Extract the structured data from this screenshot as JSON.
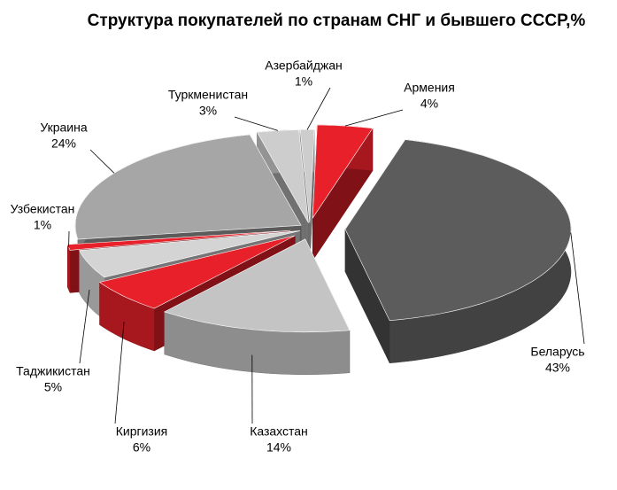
{
  "chart_data": {
    "type": "pie",
    "title": "Структура  покупателей по странам СНГ и бывшего СССР,%",
    "categories": [
      "Армения",
      "Беларусь",
      "Казахстан",
      "Киргизия",
      "Таджикистан",
      "Узбекистан",
      "Украина",
      "Туркменистан",
      "Азербайджан"
    ],
    "values": [
      4,
      43,
      14,
      6,
      5,
      1,
      24,
      3,
      1
    ],
    "value_labels": [
      "4%",
      "43%",
      "14%",
      "6%",
      "5%",
      "1%",
      "24%",
      "3%",
      "1%"
    ],
    "colors": [
      "#e8202a",
      "#5c5c5c",
      "#c4c4c4",
      "#e8202a",
      "#d4d4d4",
      "#e8202a",
      "#a6a6a6",
      "#cdcdcd",
      "#cdcdcd"
    ]
  }
}
